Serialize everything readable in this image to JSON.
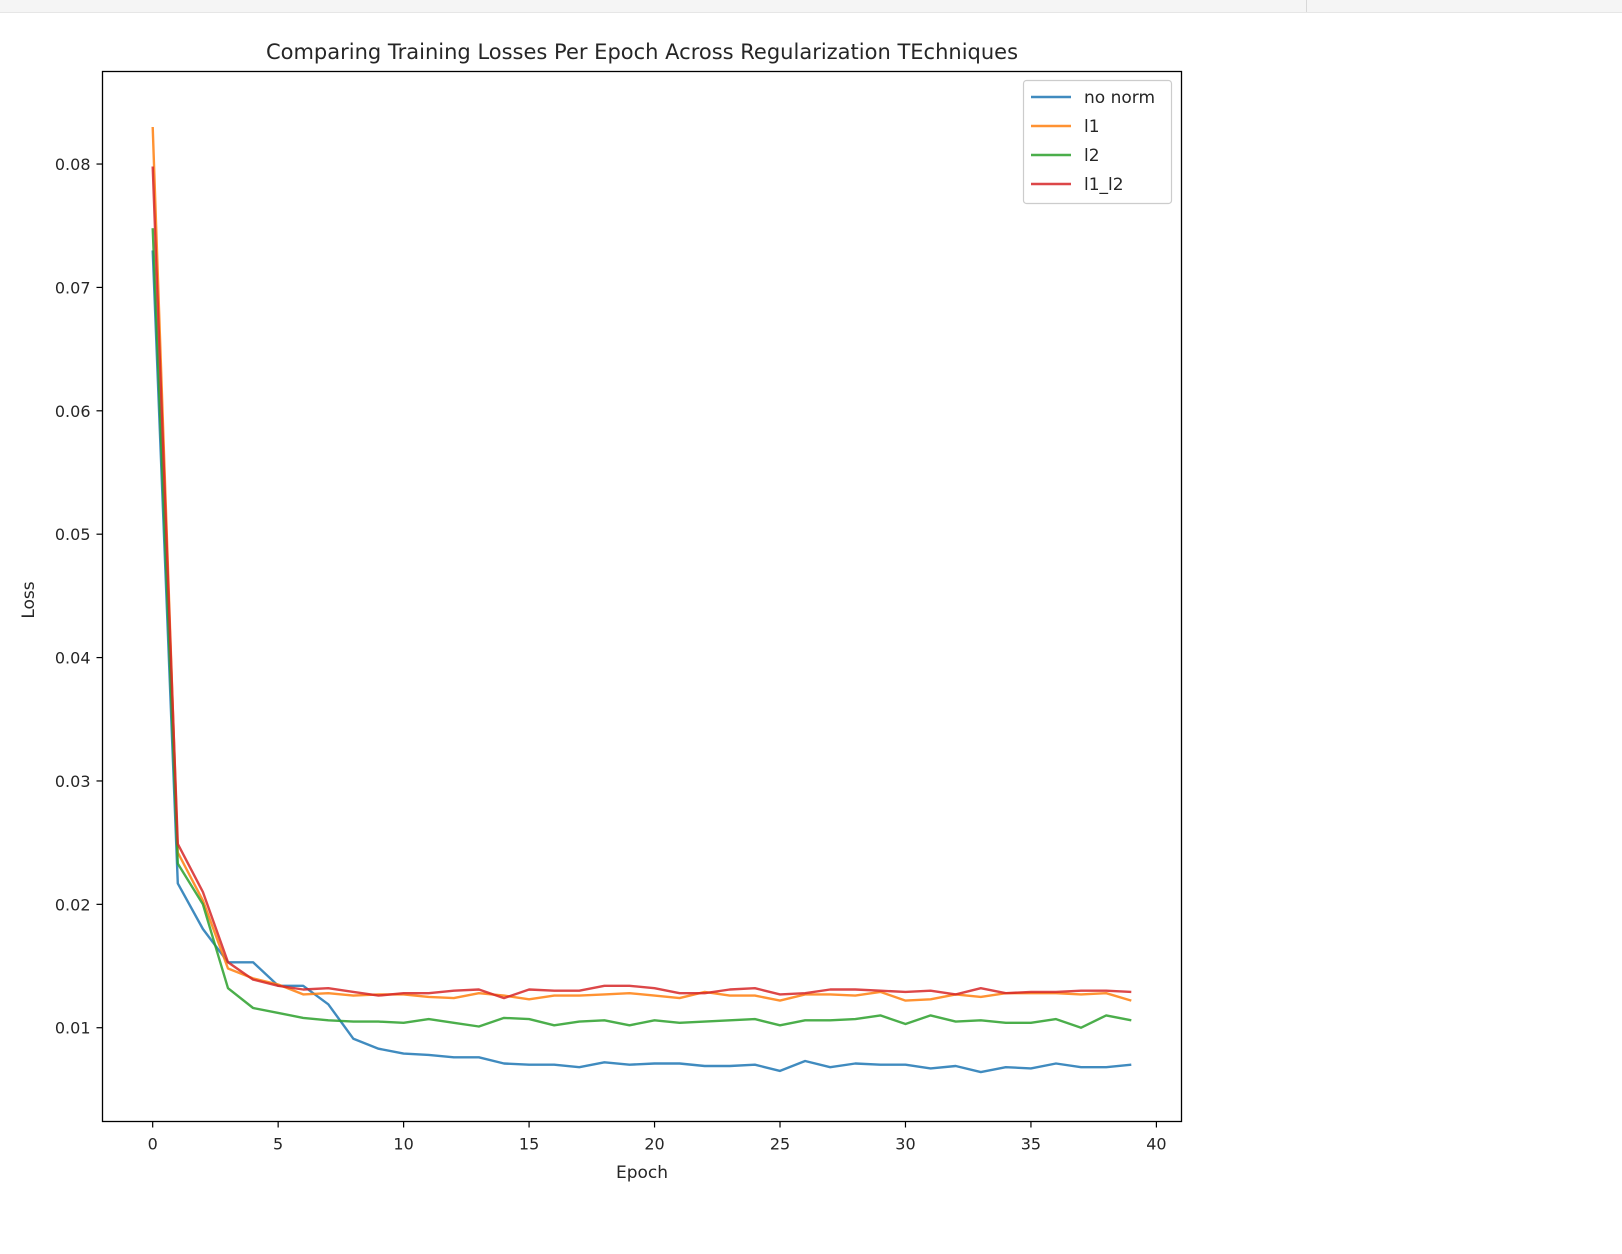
{
  "chart_data": {
    "type": "line",
    "title": "Comparing Training Losses Per Epoch Across Regularization TEchniques",
    "xlabel": "Epoch",
    "ylabel": "Loss",
    "xlim": [
      -2,
      41
    ],
    "ylim": [
      0.0024,
      0.0875
    ],
    "xticks": [
      0,
      5,
      10,
      15,
      20,
      25,
      30,
      35,
      40
    ],
    "xtick_labels": [
      "0",
      "5",
      "10",
      "15",
      "20",
      "25",
      "30",
      "35",
      "40"
    ],
    "yticks": [
      0.01,
      0.02,
      0.03,
      0.04,
      0.05,
      0.06,
      0.07,
      0.08
    ],
    "ytick_labels": [
      "0.01",
      "0.02",
      "0.03",
      "0.04",
      "0.05",
      "0.06",
      "0.07",
      "0.08"
    ],
    "grid": false,
    "legend_position": "top-right",
    "x": [
      0,
      1,
      2,
      3,
      4,
      5,
      6,
      7,
      8,
      9,
      10,
      11,
      12,
      13,
      14,
      15,
      16,
      17,
      18,
      19,
      20,
      21,
      22,
      23,
      24,
      25,
      26,
      27,
      28,
      29,
      30,
      31,
      32,
      33,
      34,
      35,
      36,
      37,
      38,
      39
    ],
    "series": [
      {
        "name": "no norm",
        "color": "#1f77b4",
        "values": [
          0.073,
          0.0217,
          0.018,
          0.0153,
          0.0153,
          0.0134,
          0.0134,
          0.0119,
          0.0091,
          0.0083,
          0.0079,
          0.0078,
          0.0076,
          0.0076,
          0.0071,
          0.007,
          0.007,
          0.0068,
          0.0072,
          0.007,
          0.0071,
          0.0071,
          0.0069,
          0.0069,
          0.007,
          0.0065,
          0.0073,
          0.0068,
          0.0071,
          0.007,
          0.007,
          0.0067,
          0.0069,
          0.0064,
          0.0068,
          0.0067,
          0.0071,
          0.0068,
          0.0068,
          0.007
        ]
      },
      {
        "name": "l1",
        "color": "#ff7f0e",
        "values": [
          0.083,
          0.0242,
          0.0203,
          0.0148,
          0.014,
          0.0135,
          0.0127,
          0.0128,
          0.0126,
          0.0127,
          0.0127,
          0.0125,
          0.0124,
          0.0128,
          0.0126,
          0.0123,
          0.0126,
          0.0126,
          0.0127,
          0.0128,
          0.0126,
          0.0124,
          0.0129,
          0.0126,
          0.0126,
          0.0122,
          0.0127,
          0.0127,
          0.0126,
          0.0129,
          0.0122,
          0.0123,
          0.0127,
          0.0125,
          0.0128,
          0.0128,
          0.0128,
          0.0127,
          0.0128,
          0.0122
        ]
      },
      {
        "name": "l2",
        "color": "#2ca02c",
        "values": [
          0.0748,
          0.0233,
          0.02,
          0.0132,
          0.0116,
          0.0112,
          0.0108,
          0.0106,
          0.0105,
          0.0105,
          0.0104,
          0.0107,
          0.0104,
          0.0101,
          0.0108,
          0.0107,
          0.0102,
          0.0105,
          0.0106,
          0.0102,
          0.0106,
          0.0104,
          0.0105,
          0.0106,
          0.0107,
          0.0102,
          0.0106,
          0.0106,
          0.0107,
          0.011,
          0.0103,
          0.011,
          0.0105,
          0.0106,
          0.0104,
          0.0104,
          0.0107,
          0.01,
          0.011,
          0.0106
        ]
      },
      {
        "name": "l1_l2",
        "color": "#d62728",
        "values": [
          0.0798,
          0.0249,
          0.021,
          0.0153,
          0.0139,
          0.0134,
          0.0131,
          0.0132,
          0.0129,
          0.0126,
          0.0128,
          0.0128,
          0.013,
          0.0131,
          0.0124,
          0.0131,
          0.013,
          0.013,
          0.0134,
          0.0134,
          0.0132,
          0.0128,
          0.0128,
          0.0131,
          0.0132,
          0.0127,
          0.0128,
          0.0131,
          0.0131,
          0.013,
          0.0129,
          0.013,
          0.0127,
          0.0132,
          0.0128,
          0.0129,
          0.0129,
          0.013,
          0.013,
          0.0129
        ]
      }
    ]
  }
}
